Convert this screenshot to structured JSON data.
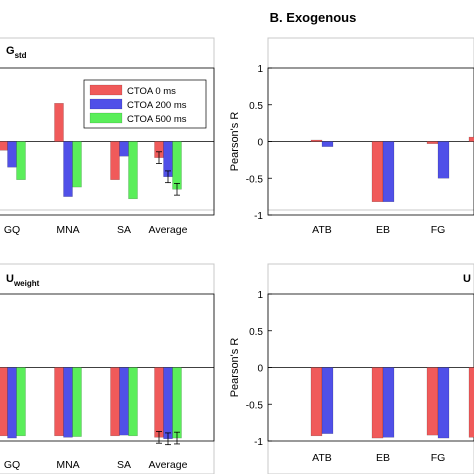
{
  "figure": {
    "section_title": "B. Exogenous",
    "legend_labels": [
      "CTOA 0 ms",
      "CTOA 200 ms",
      "CTOA 500 ms"
    ],
    "series_colors": [
      "#f05a5a",
      "#5050e8",
      "#5aee5a"
    ]
  },
  "chart_data": [
    {
      "type": "bar",
      "panel_label": "G",
      "panel_subscript": "std",
      "categories": [
        "GQ",
        "MNA",
        "SA",
        "Average"
      ],
      "series": [
        {
          "name": "CTOA 0 ms",
          "values": [
            -0.12,
            0.52,
            -0.52,
            -0.22
          ]
        },
        {
          "name": "CTOA 200 ms",
          "values": [
            -0.35,
            -0.75,
            -0.2,
            -0.48
          ]
        },
        {
          "name": "CTOA 500 ms",
          "values": [
            -0.52,
            -0.62,
            -0.78,
            -0.65
          ]
        }
      ],
      "error_bars_on": [
        "Average"
      ],
      "ylim": [
        -1,
        1
      ],
      "legend": "top-right",
      "grid": false
    },
    {
      "type": "bar",
      "categories": [
        "ATB",
        "EB",
        "FG",
        ""
      ],
      "series": [
        {
          "name": "CTOA 0 ms",
          "values": [
            0.02,
            -0.82,
            -0.03,
            0.06
          ]
        },
        {
          "name": "CTOA 200 ms",
          "values": [
            -0.07,
            -0.82,
            -0.5,
            null
          ]
        }
      ],
      "ylabel": "Pearson's R",
      "yticks": [
        "1",
        "0.5",
        "0",
        "-0.5",
        "-1"
      ],
      "ylim": [
        -1,
        1
      ],
      "grid": false
    },
    {
      "type": "bar",
      "panel_label": "U",
      "panel_subscript": "weight",
      "categories": [
        "GQ",
        "MNA",
        "SA",
        "Average"
      ],
      "series": [
        {
          "name": "CTOA 0 ms",
          "values": [
            -0.93,
            -0.93,
            -0.93,
            -0.95
          ]
        },
        {
          "name": "CTOA 200 ms",
          "values": [
            -0.96,
            -0.95,
            -0.92,
            -0.97
          ]
        },
        {
          "name": "CTOA 500 ms",
          "values": [
            -0.93,
            -0.94,
            -0.93,
            -0.96
          ]
        }
      ],
      "error_bars_on": [
        "Average"
      ],
      "ylim": [
        -1,
        1
      ],
      "grid": false
    },
    {
      "type": "bar",
      "panel_label": "U",
      "categories": [
        "ATB",
        "EB",
        "FG",
        ""
      ],
      "series": [
        {
          "name": "CTOA 0 ms",
          "values": [
            -0.93,
            -0.96,
            -0.92,
            -0.95
          ]
        },
        {
          "name": "CTOA 200 ms",
          "values": [
            -0.9,
            -0.95,
            -0.96,
            null
          ]
        }
      ],
      "ylabel": "Pearson's R",
      "yticks": [
        "1",
        "0.5",
        "0",
        "-0.5",
        "-1"
      ],
      "ylim": [
        -1,
        1
      ],
      "grid": false
    }
  ]
}
